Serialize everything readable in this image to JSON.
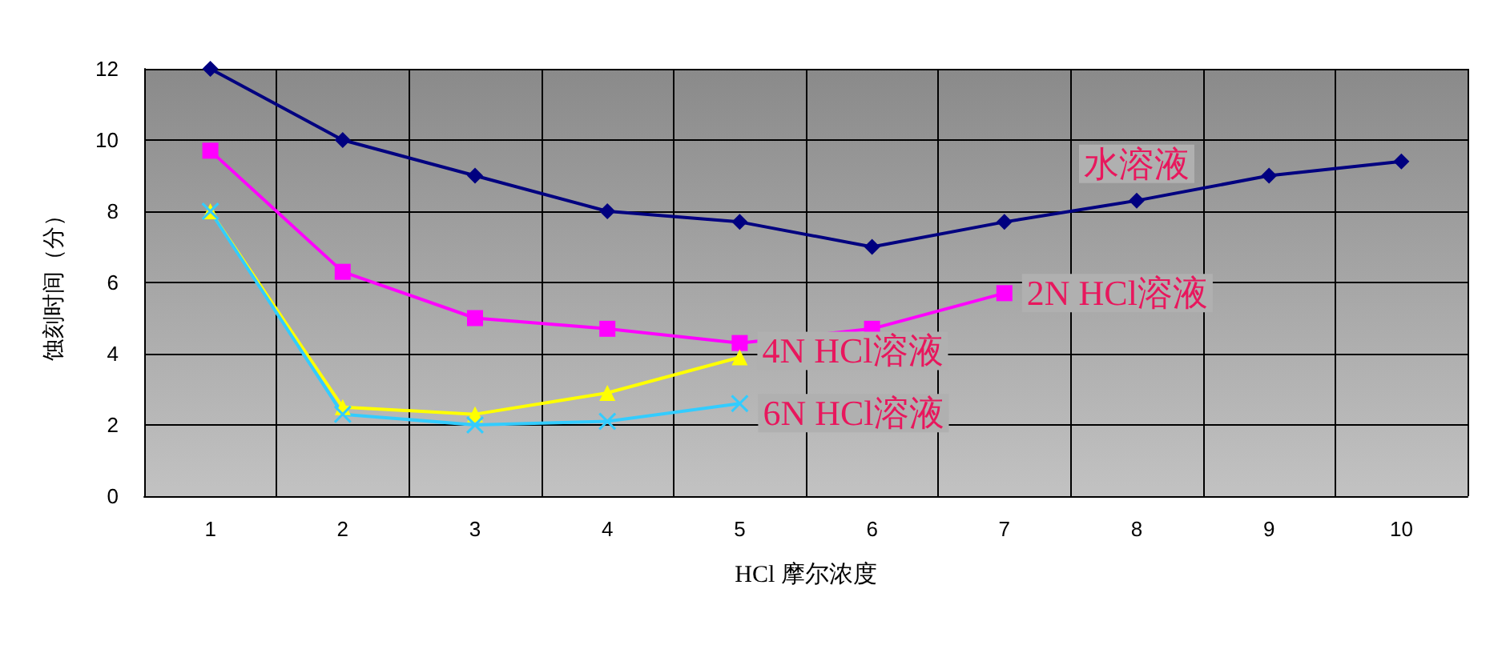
{
  "chart_data": {
    "type": "line",
    "xlabel": "HCl 摩尔浓度",
    "ylabel": "蚀刻时间（分）",
    "categories": [
      "1",
      "2",
      "3",
      "4",
      "5",
      "6",
      "7",
      "8",
      "9",
      "10"
    ],
    "series": [
      {
        "name": "水溶液",
        "color": "#000080",
        "marker": "diamond",
        "values": [
          12,
          10,
          9,
          8,
          7.7,
          7,
          7.7,
          8.3,
          9,
          9.4
        ]
      },
      {
        "name": "2N HCl溶液",
        "color": "#ff00ff",
        "marker": "square",
        "values": [
          9.7,
          6.3,
          5,
          4.7,
          4.3,
          4.7,
          5.7,
          null,
          null,
          null
        ]
      },
      {
        "name": "4N HCl溶液",
        "color": "#ffff00",
        "marker": "triangle",
        "values": [
          8,
          2.5,
          2.3,
          2.9,
          3.9,
          null,
          null,
          null,
          null,
          null
        ]
      },
      {
        "name": "6N HCl溶液",
        "color": "#33ccff",
        "marker": "cross",
        "values": [
          8,
          2.3,
          2,
          2.1,
          2.6,
          null,
          null,
          null,
          null,
          null
        ]
      }
    ],
    "ylim": [
      0,
      12
    ],
    "yticks": [
      0,
      2,
      4,
      6,
      8,
      10,
      12
    ],
    "grid": true,
    "legend": false
  }
}
